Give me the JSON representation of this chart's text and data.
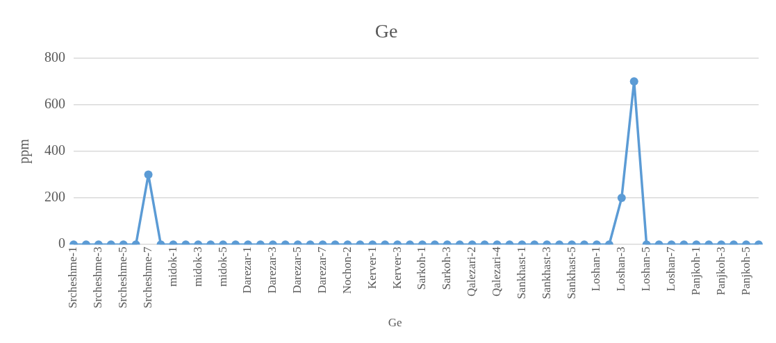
{
  "chart_data": {
    "type": "line",
    "title": "Ge",
    "ylabel": "ppm",
    "categories": [
      "Srcheshme-1",
      null,
      "Srcheshme-3",
      null,
      "Srcheshme-5",
      null,
      "Srcheshme-7",
      null,
      "midok-1",
      null,
      "midok-3",
      null,
      "midok-5",
      null,
      "Darezar-1",
      null,
      "Darezar-3",
      null,
      "Darezar-5",
      null,
      "Darezar-7",
      null,
      "Nochon-2",
      null,
      "Kerver-1",
      null,
      "Kerver-3",
      null,
      "Sarkoh-1",
      null,
      "Sarkoh-3",
      null,
      "Qalezari-2",
      null,
      "Qalezari-4",
      null,
      "Sankhast-1",
      null,
      "Sankhast-3",
      null,
      "Sankhast-5",
      null,
      "Loshan-1",
      null,
      "Loshan-3",
      null,
      "Loshan-5",
      null,
      "Loshan-7",
      null,
      "Panjkoh-1",
      null,
      "Panjkoh-3",
      null,
      "Panjkoh-5",
      null
    ],
    "series": [
      {
        "name": "Ge",
        "color": "#5b9bd5",
        "values": [
          0,
          0,
          0,
          0,
          0,
          0,
          300,
          0,
          0,
          0,
          0,
          0,
          0,
          0,
          0,
          0,
          0,
          0,
          0,
          0,
          0,
          0,
          0,
          0,
          0,
          0,
          0,
          0,
          0,
          0,
          0,
          0,
          0,
          0,
          0,
          0,
          0,
          0,
          0,
          0,
          0,
          0,
          0,
          0,
          200,
          700,
          0,
          0,
          0,
          0,
          0,
          0,
          0,
          0,
          0,
          0
        ]
      }
    ],
    "ylim": [
      0,
      800
    ],
    "yticks": [
      0,
      200,
      400,
      600,
      800
    ],
    "grid": "y",
    "legend": "bottom",
    "marker": "circle",
    "line_style": "solid"
  }
}
